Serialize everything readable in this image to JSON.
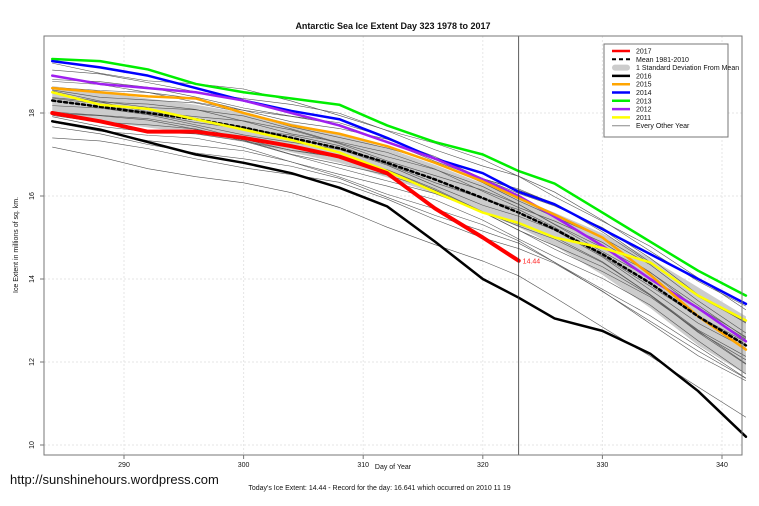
{
  "chart_data": {
    "type": "line",
    "title": "Antarctic Sea Ice Extent Day 323 1978 to 2017",
    "xlabel": "Day of Year",
    "ylabel": "Ice Extent in millions of sq. km.",
    "xlim": [
      283,
      343
    ],
    "ylim": [
      9.8,
      19.8
    ],
    "xticks": [
      290,
      300,
      310,
      320,
      330,
      340
    ],
    "yticks": [
      10,
      12,
      14,
      16,
      18
    ],
    "grid": true,
    "marker_day": 323,
    "current_label": "14.44",
    "legend_position": "top-right",
    "legend": [
      {
        "label": "2017",
        "color": "#ff0000",
        "style": "thick"
      },
      {
        "label": "Mean 1981-2010",
        "color": "#000000",
        "style": "dashed"
      },
      {
        "label": "1 Standard Deviation From Mean",
        "color": "#cccccc",
        "style": "band"
      },
      {
        "label": "2016",
        "color": "#000000",
        "style": "thick"
      },
      {
        "label": "2015",
        "color": "#ffa500",
        "style": "thick"
      },
      {
        "label": "2014",
        "color": "#0000ff",
        "style": "thick"
      },
      {
        "label": "2013",
        "color": "#00ee00",
        "style": "thick"
      },
      {
        "label": "2012",
        "color": "#a020f0",
        "style": "thick"
      },
      {
        "label": "2011",
        "color": "#ffff00",
        "style": "thick"
      },
      {
        "label": "Every Other Year",
        "color": "#888888",
        "style": "thin"
      }
    ],
    "x": [
      284,
      288,
      292,
      296,
      300,
      304,
      308,
      312,
      316,
      320,
      323,
      326,
      330,
      334,
      338,
      342
    ],
    "series": [
      {
        "name": "2013",
        "color": "#00ee00",
        "width": 2.5,
        "values": [
          19.3,
          19.25,
          19.05,
          18.7,
          18.5,
          18.35,
          18.2,
          17.7,
          17.3,
          17.0,
          16.6,
          16.3,
          15.6,
          14.9,
          14.2,
          13.6
        ]
      },
      {
        "name": "2014",
        "color": "#0000ff",
        "width": 2.5,
        "values": [
          19.25,
          19.1,
          18.9,
          18.6,
          18.3,
          18.05,
          17.85,
          17.4,
          16.9,
          16.55,
          16.1,
          15.8,
          15.2,
          14.6,
          14.0,
          13.4
        ]
      },
      {
        "name": "2012",
        "color": "#a020f0",
        "width": 2.5,
        "values": [
          18.9,
          18.7,
          18.6,
          18.5,
          18.3,
          18.0,
          17.7,
          17.3,
          16.9,
          16.4,
          16.0,
          15.5,
          14.8,
          14.0,
          13.3,
          12.5
        ]
      },
      {
        "name": "2015",
        "color": "#ffa500",
        "width": 2.5,
        "values": [
          18.6,
          18.5,
          18.4,
          18.35,
          18.0,
          17.7,
          17.5,
          17.2,
          16.8,
          16.35,
          15.95,
          15.55,
          15.0,
          14.1,
          13.1,
          12.3
        ]
      },
      {
        "name": "Mean 1981-2010",
        "color": "#000000",
        "width": 2.5,
        "dash": "3,3",
        "values": [
          18.3,
          18.15,
          18.0,
          17.85,
          17.65,
          17.4,
          17.15,
          16.8,
          16.4,
          15.95,
          15.6,
          15.2,
          14.6,
          13.9,
          13.1,
          12.4
        ]
      },
      {
        "name": "2011",
        "color": "#ffff00",
        "width": 2.5,
        "values": [
          18.5,
          18.2,
          18.1,
          17.85,
          17.6,
          17.35,
          17.05,
          16.6,
          16.1,
          15.6,
          15.35,
          15.0,
          14.75,
          14.4,
          13.6,
          13.0
        ]
      },
      {
        "name": "2017",
        "color": "#ff0000",
        "width": 4,
        "values": [
          18.0,
          17.8,
          17.55,
          17.55,
          17.4,
          17.2,
          16.95,
          16.55,
          15.7,
          15.0,
          14.44
        ]
      },
      {
        "name": "2016",
        "color": "#000000",
        "width": 2.5,
        "values": [
          17.8,
          17.6,
          17.3,
          17.0,
          16.8,
          16.55,
          16.2,
          15.75,
          14.9,
          14.0,
          13.55,
          13.05,
          12.75,
          12.2,
          11.3,
          10.2
        ]
      }
    ],
    "band": {
      "upper": [
        18.65,
        18.5,
        18.35,
        18.2,
        18.0,
        17.75,
        17.5,
        17.15,
        16.75,
        16.3,
        15.95,
        15.6,
        15.1,
        14.5,
        13.8,
        13.1
      ],
      "lower": [
        17.95,
        17.8,
        17.65,
        17.5,
        17.3,
        17.05,
        16.8,
        16.45,
        16.05,
        15.6,
        15.25,
        14.8,
        14.1,
        13.3,
        12.4,
        11.7
      ]
    }
  },
  "footer": {
    "url": "http://sunshinehours.wordpress.com",
    "caption": "Today's Ice Extent: 14.44  - Record for the day: 16.641 which occurred on 2010 11 19"
  }
}
